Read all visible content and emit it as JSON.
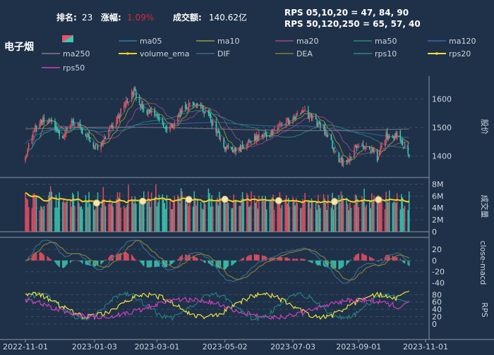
{
  "header": {
    "rank_label": "排名:",
    "rank_value": "23",
    "change_label": "涨幅:",
    "change_value": "1.09%",
    "turnover_label": "成交额:",
    "turnover_value": "140.62亿",
    "rps_line1": "RPS 05,10,20 = 47, 84, 90",
    "rps_line2": "RPS 50,120,250 = 65, 57, 40",
    "sector_name": "电子烟"
  },
  "legend": [
    {
      "name": "ma05",
      "color": "#2e7ea0",
      "style": "line"
    },
    {
      "name": "ma10",
      "color": "#9a9a3a",
      "style": "line"
    },
    {
      "name": "ma20",
      "color": "#9a4a8a",
      "style": "line"
    },
    {
      "name": "ma50",
      "color": "#2a8a7a",
      "style": "line"
    },
    {
      "name": "ma120",
      "color": "#3a6aa8",
      "style": "line"
    },
    {
      "name": "ma250",
      "color": "#8a7a8a",
      "style": "line"
    },
    {
      "name": "volume_ema",
      "color": "#f0d020",
      "style": "marker"
    },
    {
      "name": "DIF",
      "color": "#3a6a8a",
      "style": "line"
    },
    {
      "name": "DEA",
      "color": "#8a7a3a",
      "style": "line"
    },
    {
      "name": "rps10",
      "color": "#2a8a8a",
      "style": "line"
    },
    {
      "name": "rps20",
      "color": "#f0e040",
      "style": "marker"
    },
    {
      "name": "rps50",
      "color": "#d040c0",
      "style": "line"
    }
  ],
  "colors": {
    "background": "#1e3148",
    "up": "#ef4f63",
    "down": "#3cc9b0",
    "change_text": "#d8283c",
    "grid": "#3a4e66",
    "axis_text": "#cfd6e0"
  },
  "chart_data": [
    {
      "type": "candlestick",
      "ylabel": "股价",
      "yticks": [
        1400,
        1500,
        1600
      ],
      "ylim": [
        1325,
        1680
      ],
      "xticks": [
        "2022-11-01",
        "2023-01-03",
        "2023-03-01",
        "2023-05-02",
        "2023-07-03",
        "2023-09-01",
        "2023-11-01"
      ],
      "x_range": [
        "2022-11-01",
        "2023-11-01"
      ],
      "close_anchors": [
        {
          "date": "2022-11-01",
          "close": 1390
        },
        {
          "date": "2022-11-08",
          "close": 1490
        },
        {
          "date": "2022-11-20",
          "close": 1535
        },
        {
          "date": "2022-12-05",
          "close": 1470
        },
        {
          "date": "2022-12-15",
          "close": 1525
        },
        {
          "date": "2022-12-28",
          "close": 1465
        },
        {
          "date": "2023-01-06",
          "close": 1430
        },
        {
          "date": "2023-01-16",
          "close": 1490
        },
        {
          "date": "2023-01-28",
          "close": 1560
        },
        {
          "date": "2023-02-08",
          "close": 1630
        },
        {
          "date": "2023-02-16",
          "close": 1565
        },
        {
          "date": "2023-02-28",
          "close": 1545
        },
        {
          "date": "2023-03-12",
          "close": 1490
        },
        {
          "date": "2023-03-25",
          "close": 1570
        },
        {
          "date": "2023-04-08",
          "close": 1590
        },
        {
          "date": "2023-04-20",
          "close": 1520
        },
        {
          "date": "2023-05-02",
          "close": 1430
        },
        {
          "date": "2023-05-12",
          "close": 1415
        },
        {
          "date": "2023-05-26",
          "close": 1460
        },
        {
          "date": "2023-06-08",
          "close": 1475
        },
        {
          "date": "2023-06-20",
          "close": 1500
        },
        {
          "date": "2023-07-03",
          "close": 1535
        },
        {
          "date": "2023-07-14",
          "close": 1550
        },
        {
          "date": "2023-07-24",
          "close": 1520
        },
        {
          "date": "2023-08-03",
          "close": 1480
        },
        {
          "date": "2023-08-12",
          "close": 1400
        },
        {
          "date": "2023-08-20",
          "close": 1365
        },
        {
          "date": "2023-08-28",
          "close": 1430
        },
        {
          "date": "2023-09-08",
          "close": 1440
        },
        {
          "date": "2023-09-18",
          "close": 1395
        },
        {
          "date": "2023-09-26",
          "close": 1470
        },
        {
          "date": "2023-10-06",
          "close": 1475
        },
        {
          "date": "2023-10-12",
          "close": 1440
        },
        {
          "date": "2023-10-17",
          "close": 1390
        }
      ]
    },
    {
      "type": "bar",
      "ylabel": "成交量",
      "yticks": [
        "0",
        "2M",
        "4M",
        "6M",
        "8M"
      ],
      "ylim": [
        0,
        9000000
      ],
      "series": [
        {
          "name": "volume_ema"
        }
      ]
    },
    {
      "type": "bar",
      "ylabel": "close-macd",
      "yticks": [
        -40,
        -20,
        0,
        20
      ],
      "ylim": [
        -48,
        40
      ],
      "series": [
        {
          "name": "DIF"
        },
        {
          "name": "DEA"
        }
      ]
    },
    {
      "type": "line",
      "ylabel": "RPS",
      "yticks": [
        0,
        20,
        40,
        60,
        80
      ],
      "ylim": [
        -4,
        92
      ],
      "series": [
        {
          "name": "rps10"
        },
        {
          "name": "rps20"
        },
        {
          "name": "rps50"
        }
      ]
    }
  ]
}
